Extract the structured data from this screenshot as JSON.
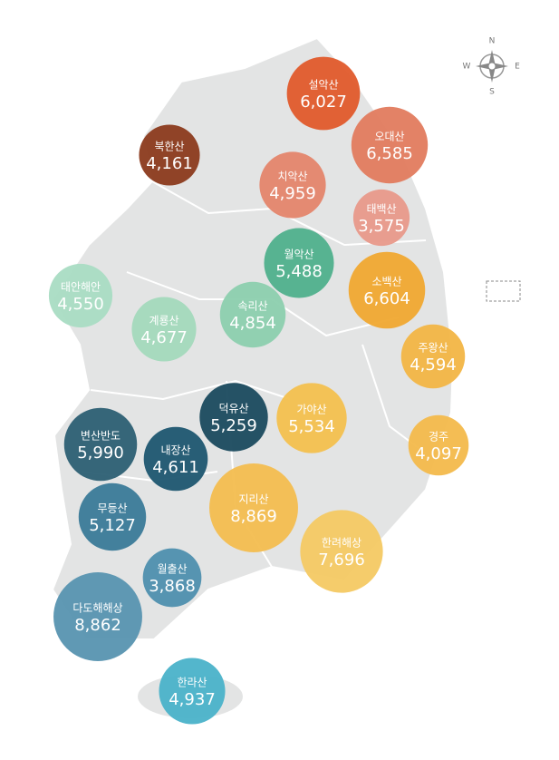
{
  "compass": {
    "north": "N",
    "east": "E",
    "south": "S",
    "west": "W"
  },
  "parks": [
    {
      "name": "설악산",
      "value": 6027,
      "label": "6,027",
      "color": "#e05a2b"
    },
    {
      "name": "오대산",
      "value": 6585,
      "label": "6,585",
      "color": "#e27b5e"
    },
    {
      "name": "북한산",
      "value": 4161,
      "label": "4,161",
      "color": "#8b3a1c"
    },
    {
      "name": "치악산",
      "value": 4959,
      "label": "4,959",
      "color": "#e4856c"
    },
    {
      "name": "태백산",
      "value": 3575,
      "label": "3,575",
      "color": "#e8998a"
    },
    {
      "name": "월악산",
      "value": 5488,
      "label": "5,488",
      "color": "#4fb08c"
    },
    {
      "name": "소백산",
      "value": 6604,
      "label": "6,604",
      "color": "#f0a830"
    },
    {
      "name": "태안해안",
      "value": 4550,
      "label": "4,550",
      "color": "#a9dcc3"
    },
    {
      "name": "계룡산",
      "value": 4677,
      "label": "4,677",
      "color": "#a3d9bc"
    },
    {
      "name": "속리산",
      "value": 4854,
      "label": "4,854",
      "color": "#8ccfae"
    },
    {
      "name": "주왕산",
      "value": 4594,
      "label": "4,594",
      "color": "#f2b544"
    },
    {
      "name": "덕유산",
      "value": 5259,
      "label": "5,259",
      "color": "#1a4a5e"
    },
    {
      "name": "가야산",
      "value": 5534,
      "label": "5,534",
      "color": "#f3c04e"
    },
    {
      "name": "경주",
      "value": 4097,
      "label": "4,097",
      "color": "#f3b94b"
    },
    {
      "name": "변산반도",
      "value": 5990,
      "label": "5,990",
      "color": "#2c5f73"
    },
    {
      "name": "내장산",
      "value": 4611,
      "label": "4,611",
      "color": "#1e5670"
    },
    {
      "name": "지리산",
      "value": 8869,
      "label": "8,869",
      "color": "#f3bd4f"
    },
    {
      "name": "무등산",
      "value": 5127,
      "label": "5,127",
      "color": "#3a7a98"
    },
    {
      "name": "한려해상",
      "value": 7696,
      "label": "7,696",
      "color": "#f4c963"
    },
    {
      "name": "월출산",
      "value": 3868,
      "label": "3,868",
      "color": "#4e8fae"
    },
    {
      "name": "다도해해상",
      "value": 8862,
      "label": "8,862",
      "color": "#5793b0"
    },
    {
      "name": "한라산",
      "value": 4937,
      "label": "4,937",
      "color": "#4ab2c9"
    }
  ]
}
